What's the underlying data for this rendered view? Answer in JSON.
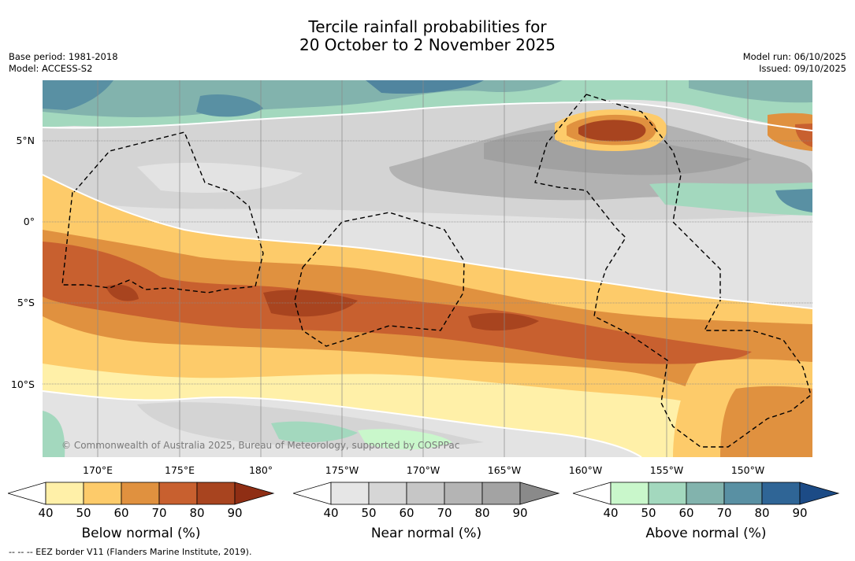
{
  "title": {
    "line1": "Tercile rainfall probabilities for",
    "line2": "20 October to 2 November 2025"
  },
  "meta": {
    "base_period": "Base period: 1981-2018",
    "model": "Model: ACCESS-S2",
    "model_run": "Model run: 06/10/2025",
    "issued": "Issued: 09/10/2025"
  },
  "map": {
    "latitude_labels": [
      "5°N",
      "0°",
      "5°S",
      "10°S"
    ],
    "longitude_labels": [
      "170°E",
      "175°E",
      "180°",
      "175°W",
      "170°W",
      "165°W",
      "160°W",
      "155°W",
      "150°W"
    ],
    "credit": "© Commonwealth of Australia 2025, Bureau of Meteorology, supported by COSPPac",
    "colors": {
      "below": [
        "#fff0a8",
        "#fdcb6a",
        "#e0913f",
        "#c8602f",
        "#a8441f",
        "#8f2e14"
      ],
      "near": [
        "#e3e3e3",
        "#d4d4d4",
        "#c4c4c4",
        "#b2b2b2",
        "#a1a1a1",
        "#8c8c8c"
      ],
      "above": [
        "#c9f7cb",
        "#a3d8be",
        "#82b3ad",
        "#5990a3",
        "#2f6596",
        "#1c4b86"
      ]
    }
  },
  "colorbars": [
    {
      "label": "Below normal (%)",
      "ticks": [
        "40",
        "50",
        "60",
        "70",
        "80",
        "90"
      ],
      "colors": [
        "#fff0a8",
        "#fdcb6a",
        "#e0913f",
        "#c8602f",
        "#a8441f",
        "#8f2e14"
      ]
    },
    {
      "label": "Near normal (%)",
      "ticks": [
        "40",
        "50",
        "60",
        "70",
        "80",
        "90"
      ],
      "colors": [
        "#e6e6e6",
        "#d6d6d6",
        "#c6c6c6",
        "#b4b4b4",
        "#a3a3a3",
        "#8a8a8a"
      ]
    },
    {
      "label": "Above normal (%)",
      "ticks": [
        "40",
        "50",
        "60",
        "70",
        "80",
        "90"
      ],
      "colors": [
        "#c9f7cb",
        "#a3d8be",
        "#82b3ad",
        "#5990a3",
        "#2f6596",
        "#1c4b86"
      ]
    }
  ],
  "footer": "-- -- -- EEZ border V11 (Flanders Marine Institute, 2019)."
}
